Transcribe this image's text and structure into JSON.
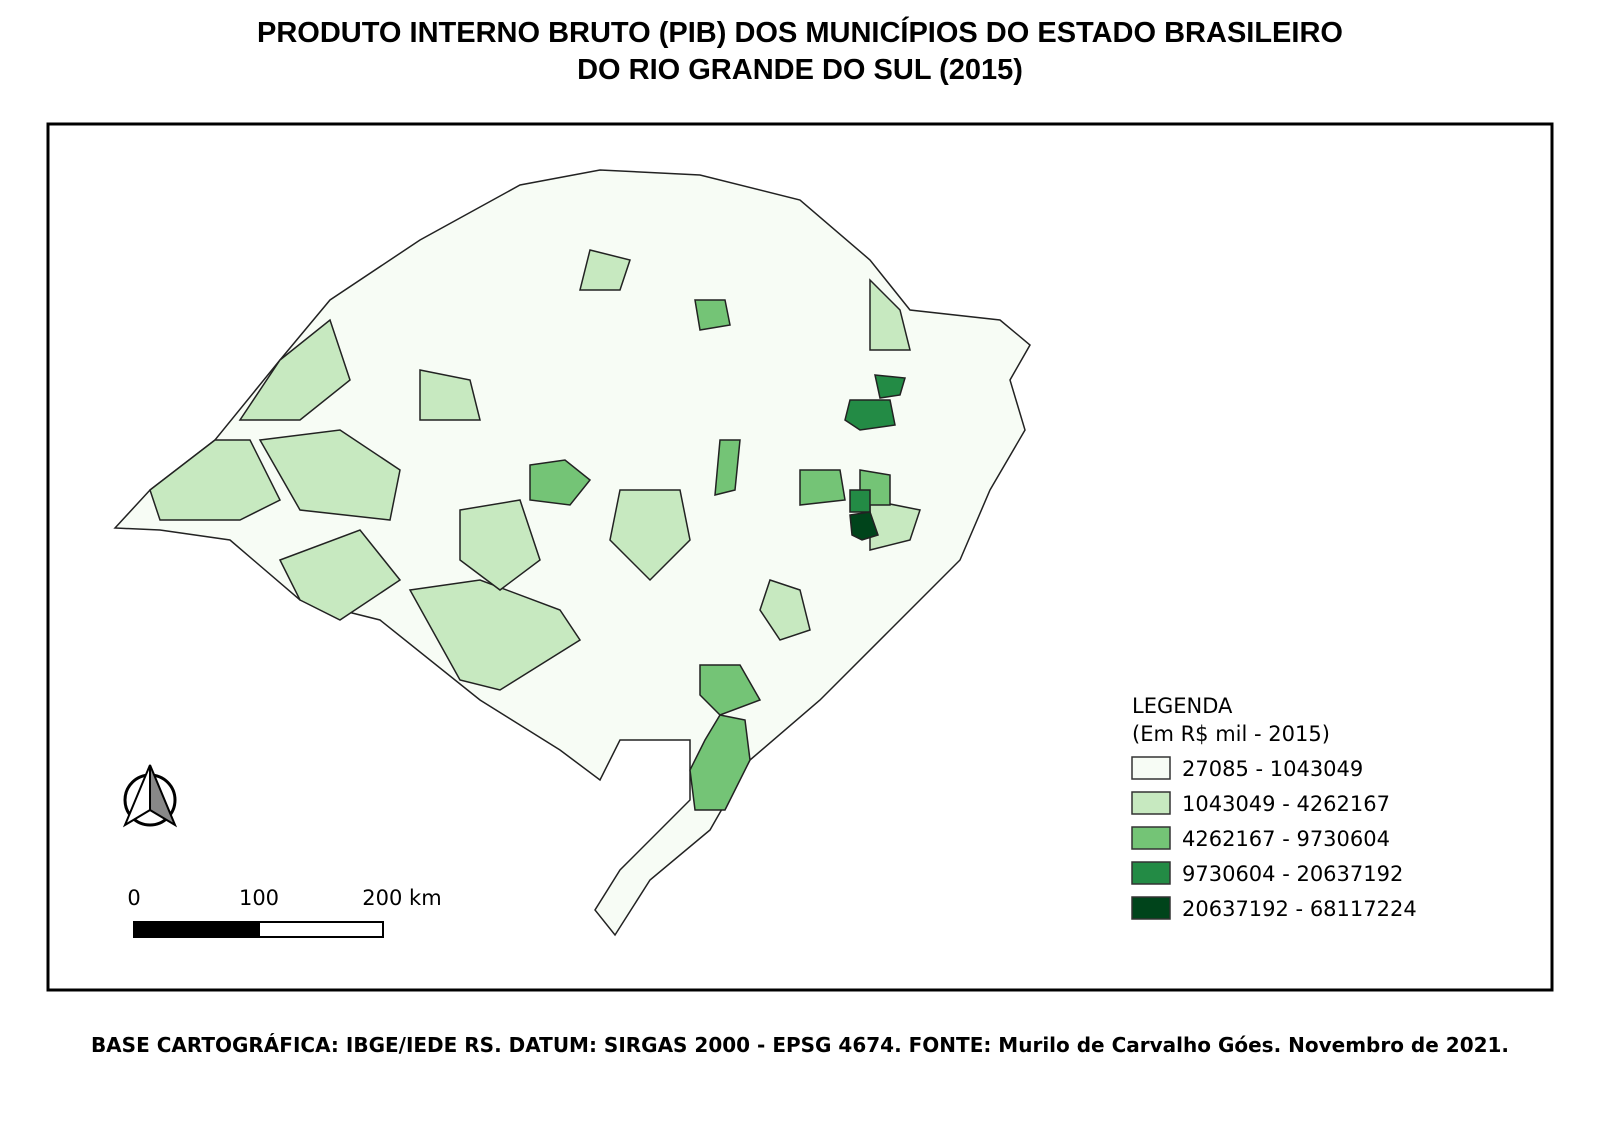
{
  "title": {
    "line1": "PRODUTO INTERNO BRUTO (PIB) DOS MUNICÍPIOS DO ESTADO BRASILEIRO",
    "line2": "DO RIO GRANDE DO SUL (2015)"
  },
  "legend": {
    "title": "LEGENDA",
    "subtitle": "(Em R$ mil - 2015)",
    "items": [
      {
        "label": "27085 - 1043049",
        "color": "#f7fcf5"
      },
      {
        "label": "1043049 - 4262167",
        "color": "#c7e9c0"
      },
      {
        "label": "4262167 - 9730604",
        "color": "#74c476"
      },
      {
        "label": "9730604 - 20637192",
        "color": "#238b45"
      },
      {
        "label": "20637192 - 68117224",
        "color": "#00441b"
      }
    ]
  },
  "scale_bar": {
    "labels": [
      "0",
      "100",
      "200 km"
    ]
  },
  "footer": "BASE CARTOGRÁFICA: IBGE/IEDE RS. DATUM: SIRGAS 2000 - EPSG 4674. FONTE: Murilo de Carvalho Góes. Novembro de 2021."
}
